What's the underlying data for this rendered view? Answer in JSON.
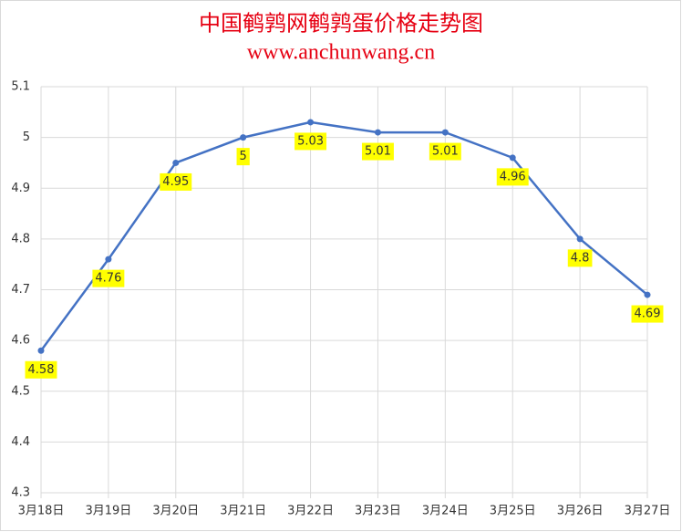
{
  "chart_data": {
    "type": "line",
    "title": "中国鹌鹑网鹌鹑蛋价格走势图",
    "subtitle": "www.anchunwang.cn",
    "categories": [
      "3月18日",
      "3月19日",
      "3月20日",
      "3月21日",
      "3月22日",
      "3月23日",
      "3月24日",
      "3月25日",
      "3月26日",
      "3月27日"
    ],
    "series": [
      {
        "color": "#4472c4",
        "values": [
          4.58,
          4.76,
          4.95,
          5,
          5.03,
          5.01,
          5.01,
          4.96,
          4.8,
          4.69
        ]
      }
    ],
    "ylim": [
      4.3,
      5.1
    ],
    "yticks": [
      4.3,
      4.4,
      4.5,
      4.6,
      4.7,
      4.8,
      4.9,
      5,
      5.1
    ],
    "grid": true,
    "label_background": "#ffff00"
  }
}
